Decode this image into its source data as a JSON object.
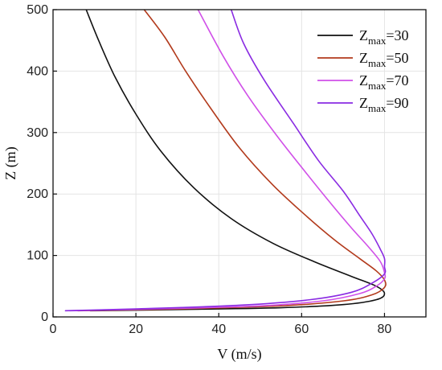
{
  "chart_data": {
    "type": "line",
    "xlabel": "V (m/s)",
    "ylabel": "Z (m)",
    "xlim": [
      0,
      90
    ],
    "ylim": [
      0,
      500
    ],
    "xticks": [
      0,
      20,
      40,
      60,
      80
    ],
    "yticks": [
      0,
      100,
      200,
      300,
      400,
      500
    ],
    "grid": true,
    "legend_position": "top-right",
    "series": [
      {
        "name": "=30",
        "name_sub": "max",
        "name_prefix": "Z",
        "color": "#111111",
        "points": [
          [
            9,
            10
          ],
          [
            30,
            12
          ],
          [
            55,
            15
          ],
          [
            70,
            20
          ],
          [
            78,
            28
          ],
          [
            80,
            38
          ],
          [
            78,
            50
          ],
          [
            72,
            66
          ],
          [
            63,
            90
          ],
          [
            53,
            120
          ],
          [
            43,
            160
          ],
          [
            34,
            210
          ],
          [
            26,
            270
          ],
          [
            20,
            330
          ],
          [
            15,
            390
          ],
          [
            11,
            450
          ],
          [
            8,
            500
          ]
        ]
      },
      {
        "name": "=50",
        "name_sub": "max",
        "name_prefix": "Z",
        "color": "#b23a1c",
        "points": [
          [
            6,
            10
          ],
          [
            30,
            13
          ],
          [
            55,
            18
          ],
          [
            70,
            26
          ],
          [
            77,
            36
          ],
          [
            80,
            48
          ],
          [
            80,
            60
          ],
          [
            78,
            75
          ],
          [
            74,
            95
          ],
          [
            68,
            125
          ],
          [
            61,
            165
          ],
          [
            53,
            215
          ],
          [
            45,
            275
          ],
          [
            38,
            340
          ],
          [
            32,
            400
          ],
          [
            27,
            455
          ],
          [
            22,
            500
          ]
        ]
      },
      {
        "name": "=70",
        "name_sub": "max",
        "name_prefix": "Z",
        "color": "#d050e8",
        "points": [
          [
            4,
            10
          ],
          [
            25,
            13
          ],
          [
            50,
            18
          ],
          [
            65,
            26
          ],
          [
            74,
            38
          ],
          [
            78,
            50
          ],
          [
            80,
            62
          ],
          [
            80,
            72
          ],
          [
            79,
            90
          ],
          [
            76,
            115
          ],
          [
            72,
            145
          ],
          [
            67,
            185
          ],
          [
            61,
            235
          ],
          [
            54,
            295
          ],
          [
            47,
            360
          ],
          [
            41,
            425
          ],
          [
            35,
            500
          ]
        ]
      },
      {
        "name": "=90",
        "name_sub": "max",
        "name_prefix": "Z",
        "color": "#8a2be2",
        "points": [
          [
            3,
            10
          ],
          [
            20,
            13
          ],
          [
            45,
            19
          ],
          [
            62,
            28
          ],
          [
            72,
            40
          ],
          [
            77,
            55
          ],
          [
            80,
            70
          ],
          [
            80,
            82
          ],
          [
            80,
            95
          ],
          [
            79,
            110
          ],
          [
            77,
            135
          ],
          [
            74,
            165
          ],
          [
            70,
            205
          ],
          [
            64,
            255
          ],
          [
            58,
            315
          ],
          [
            51,
            385
          ],
          [
            46,
            445
          ],
          [
            43,
            500
          ]
        ]
      }
    ]
  }
}
